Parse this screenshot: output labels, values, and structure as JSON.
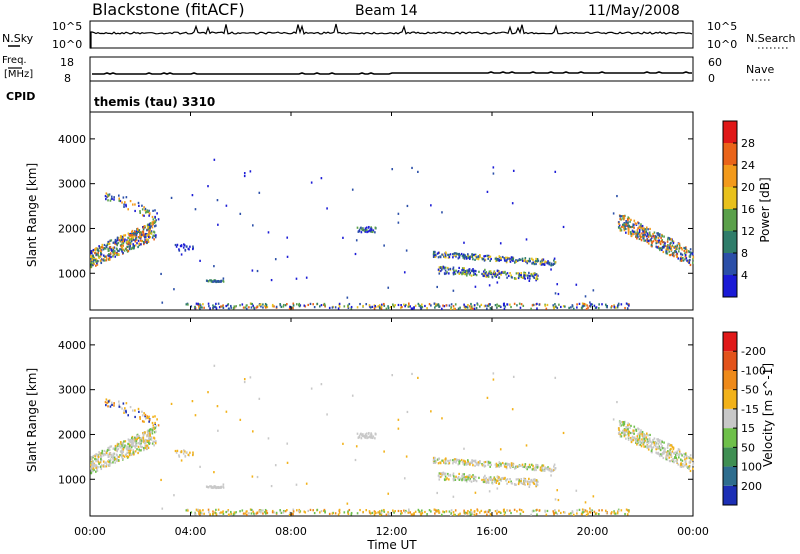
{
  "header": {
    "title": "Blackstone (fitACF)",
    "beam": "Beam 14",
    "date": "11/May/2008"
  },
  "nsky_panel": {
    "left_label": "N.Sky",
    "left_ticks": [
      "10^5",
      "10^0"
    ],
    "right_ticks": [
      "10^5",
      "10^0"
    ],
    "right_label": "N.Search"
  },
  "freq_panel": {
    "left_label_line1": "Freq.",
    "left_label_line2": "[MHz]",
    "left_ticks": [
      "18",
      "8"
    ],
    "right_ticks": [
      "60",
      "0"
    ],
    "right_label": "Nave"
  },
  "cpid_panel": {
    "label": "CPID",
    "text": "themis (tau) 3310"
  },
  "x_axis": {
    "title": "Time UT",
    "ticks": [
      "00:00",
      "04:00",
      "08:00",
      "12:00",
      "16:00",
      "20:00",
      "00:00"
    ]
  },
  "power_panel": {
    "ylabel": "Slant Range [km]",
    "yticks": [
      "1000",
      "2000",
      "3000",
      "4000"
    ],
    "colorbar_label": "Power [dB]",
    "colorbar_ticks": [
      "4",
      "8",
      "12",
      "16",
      "20",
      "24",
      "28"
    ],
    "colorbar_colors": [
      "#1b1bd6",
      "#2b4fa8",
      "#2f7d6a",
      "#5aa04a",
      "#e8c11c",
      "#f39a1b",
      "#ea6419",
      "#e01818"
    ]
  },
  "velocity_panel": {
    "ylabel": "Slant Range [km]",
    "yticks": [
      "1000",
      "2000",
      "3000",
      "4000"
    ],
    "colorbar_label": "Velocity [m s^-1]",
    "colorbar_ticks": [
      "200",
      "100",
      "50",
      "15",
      "-15",
      "-50",
      "-100",
      "-200"
    ],
    "colorbar_colors": [
      "#1c2fb5",
      "#2e6d8e",
      "#3f8f53",
      "#6ec04a",
      "#c8c8c8",
      "#f2b21a",
      "#ee8a1a",
      "#e2521a",
      "#e01818"
    ]
  },
  "chart_data": {
    "type": "heatmap",
    "x_range_hours": [
      0,
      24
    ],
    "y_range_km": [
      180,
      4600
    ],
    "scatter_regions": [
      {
        "name": "dawn-near",
        "t": [
          0,
          2.6
        ],
        "r": [
          1100,
          2100
        ]
      },
      {
        "name": "far-arc",
        "t": [
          0.5,
          2.7
        ],
        "r": [
          2300,
          3100
        ]
      },
      {
        "name": "morning-patch",
        "t": [
          4.6,
          5.3
        ],
        "r": [
          780,
          820
        ]
      },
      {
        "name": "noon-patch",
        "t": [
          10.6,
          11.4
        ],
        "r": [
          1850,
          2050
        ]
      },
      {
        "name": "afternoon-band-upper",
        "t": [
          13.6,
          18.5
        ],
        "r": [
          1150,
          1450
        ]
      },
      {
        "name": "afternoon-band-lower",
        "t": [
          13.8,
          17.8
        ],
        "r": [
          850,
          1100
        ]
      },
      {
        "name": "evening-rise",
        "t": [
          21.0,
          24.0
        ],
        "r": [
          1200,
          2300
        ]
      },
      {
        "name": "near-range",
        "t": [
          3.8,
          21.5
        ],
        "r": [
          180,
          320
        ]
      }
    ],
    "power_range_db": [
      0,
      30
    ],
    "velocity_range": [
      -200,
      200
    ]
  }
}
